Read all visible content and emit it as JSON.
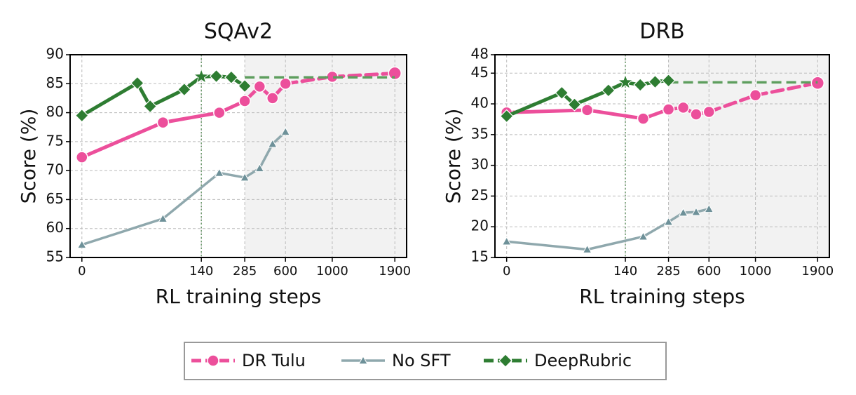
{
  "chart_data": [
    {
      "type": "line",
      "title": "SQAv2",
      "x_label": "RL training steps",
      "y_label": "Score (%)",
      "ylim": [
        55,
        90
      ],
      "yticks": [
        55,
        60,
        65,
        70,
        75,
        80,
        85,
        90
      ],
      "xticks": [
        0,
        140,
        285,
        600,
        1000,
        1900
      ],
      "grid": true,
      "vline": 140,
      "shade_from": 285,
      "series": [
        {
          "name": "DR Tulu",
          "color": "#ec4f9b",
          "marker": "circle",
          "dash_from": 600,
          "x": [
            0,
            95,
            200,
            285,
            400,
            500,
            600,
            1000,
            1900
          ],
          "values": [
            72.3,
            78.3,
            80.0,
            82.0,
            84.5,
            82.5,
            85.0,
            86.2,
            86.8
          ]
        },
        {
          "name": "No SFT",
          "color": "#8fa8ad",
          "marker": "triangle",
          "x": [
            0,
            95,
            200,
            285,
            400,
            500,
            600
          ],
          "values": [
            57.2,
            61.7,
            69.6,
            68.8,
            70.4,
            74.6,
            76.7
          ]
        },
        {
          "name": "DeepRubric",
          "color": "#2e7d32",
          "marker": "diamond",
          "star_index": 4,
          "x": [
            0,
            65,
            80,
            120,
            140,
            190,
            240,
            285
          ],
          "values": [
            79.5,
            85.1,
            81.1,
            84.0,
            86.2,
            86.3,
            86.1,
            84.6
          ],
          "hline": {
            "value": 86.1,
            "from": 285,
            "to": 1900
          }
        }
      ]
    },
    {
      "type": "line",
      "title": "DRB",
      "x_label": "RL training steps",
      "y_label": "Score (%)",
      "ylim": [
        15,
        48
      ],
      "yticks": [
        15,
        20,
        25,
        30,
        35,
        40,
        45,
        48
      ],
      "xticks": [
        0,
        140,
        285,
        600,
        1000,
        1900
      ],
      "grid": true,
      "vline": 140,
      "shade_from": 285,
      "series": [
        {
          "name": "DR Tulu",
          "color": "#ec4f9b",
          "marker": "circle",
          "dash_from": 600,
          "x": [
            0,
            95,
            200,
            285,
            400,
            500,
            600,
            1000,
            1900
          ],
          "values": [
            38.6,
            39.0,
            37.6,
            39.1,
            39.4,
            38.3,
            38.7,
            41.4,
            43.4
          ]
        },
        {
          "name": "No SFT",
          "color": "#8fa8ad",
          "marker": "triangle",
          "x": [
            0,
            95,
            200,
            285,
            400,
            500,
            600
          ],
          "values": [
            17.6,
            16.3,
            18.4,
            20.8,
            22.3,
            22.4,
            22.9
          ]
        },
        {
          "name": "DeepRubric",
          "color": "#2e7d32",
          "marker": "diamond",
          "star_index": 4,
          "x": [
            0,
            65,
            80,
            120,
            140,
            190,
            240,
            285
          ],
          "values": [
            38.0,
            41.8,
            39.9,
            42.2,
            43.5,
            43.1,
            43.6,
            43.8
          ],
          "hline": {
            "value": 43.5,
            "from": 285,
            "to": 1900
          }
        }
      ]
    }
  ]
}
